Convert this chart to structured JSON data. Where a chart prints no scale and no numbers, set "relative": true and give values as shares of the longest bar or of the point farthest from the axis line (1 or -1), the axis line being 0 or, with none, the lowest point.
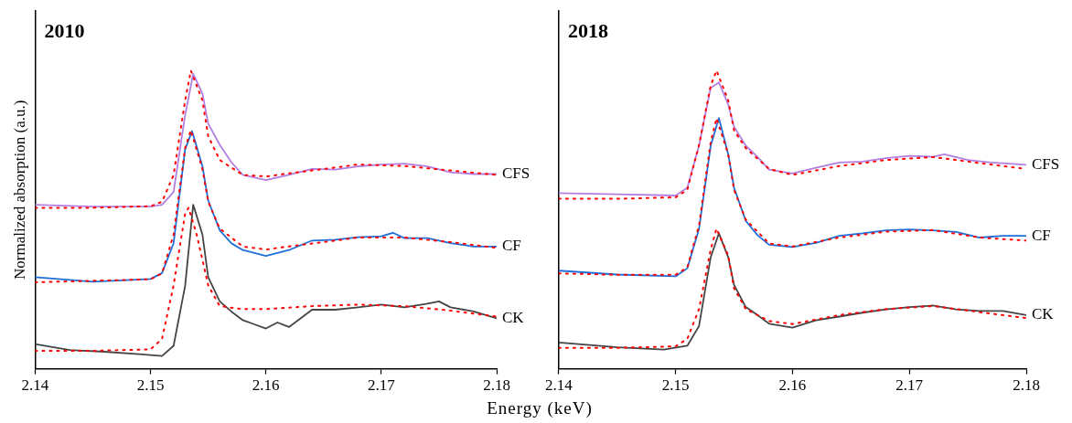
{
  "chart_data": [
    {
      "type": "line",
      "title": "2010",
      "xlabel": "Energy (keV)",
      "ylabel": "Normalized absorption (a.u.)",
      "relative": true,
      "xlim": [
        2.14,
        2.18
      ],
      "xticks": [
        2.14,
        2.15,
        2.16,
        2.17,
        2.18
      ],
      "tick_labels": "x",
      "grid": false,
      "marker": "none",
      "line_style": "solid",
      "series": [
        {
          "name": "CFS",
          "color": "#b27fe0",
          "x": [
            2.14,
            2.145,
            2.15,
            2.151,
            2.152,
            2.153,
            2.1537,
            2.1545,
            2.155,
            2.156,
            2.157,
            2.158,
            2.16,
            2.162,
            2.164,
            2.166,
            2.168,
            2.17,
            2.172,
            2.174,
            2.176,
            2.178,
            2.18
          ],
          "values": [
            0.55,
            0.544,
            0.544,
            0.55,
            0.593,
            0.851,
            0.989,
            0.923,
            0.822,
            0.751,
            0.693,
            0.65,
            0.633,
            0.65,
            0.67,
            0.668,
            0.679,
            0.685,
            0.688,
            0.679,
            0.659,
            0.653,
            0.653
          ]
        },
        {
          "name": "CF",
          "color": "#1f6fd8",
          "x": [
            2.14,
            2.145,
            2.15,
            2.151,
            2.152,
            2.153,
            2.1536,
            2.1545,
            2.155,
            2.156,
            2.157,
            2.158,
            2.16,
            2.162,
            2.164,
            2.166,
            2.168,
            2.17,
            2.171,
            2.172,
            2.174,
            2.176,
            2.178,
            2.18
          ],
          "values": [
            0.307,
            0.292,
            0.301,
            0.321,
            0.421,
            0.736,
            0.797,
            0.679,
            0.564,
            0.464,
            0.421,
            0.398,
            0.378,
            0.398,
            0.43,
            0.433,
            0.441,
            0.444,
            0.456,
            0.438,
            0.438,
            0.421,
            0.41,
            0.41
          ]
        },
        {
          "name": "CK",
          "color": "#454545",
          "x": [
            2.14,
            2.143,
            2.146,
            2.149,
            2.151,
            2.152,
            2.153,
            2.1537,
            2.1545,
            2.155,
            2.156,
            2.157,
            2.158,
            2.159,
            2.16,
            2.161,
            2.162,
            2.164,
            2.166,
            2.168,
            2.17,
            2.172,
            2.174,
            2.175,
            2.176,
            2.178,
            2.18
          ],
          "values": [
            0.083,
            0.063,
            0.057,
            0.049,
            0.043,
            0.077,
            0.278,
            0.55,
            0.45,
            0.307,
            0.226,
            0.192,
            0.163,
            0.149,
            0.135,
            0.155,
            0.14,
            0.198,
            0.198,
            0.206,
            0.215,
            0.206,
            0.218,
            0.226,
            0.206,
            0.192,
            0.169
          ]
        },
        {
          "color": "#ff0000",
          "line_style": "dotted",
          "x": [
            2.14,
            2.145,
            2.15,
            2.151,
            2.152,
            2.153,
            2.1535,
            2.1545,
            2.155,
            2.156,
            2.158,
            2.16,
            2.164,
            2.168,
            2.172,
            2.176,
            2.18
          ],
          "values": [
            0.54,
            0.54,
            0.545,
            0.56,
            0.65,
            0.9,
            1.0,
            0.9,
            0.78,
            0.7,
            0.65,
            0.645,
            0.665,
            0.685,
            0.68,
            0.665,
            0.65
          ]
        },
        {
          "color": "#ff0000",
          "line_style": "dotted",
          "x": [
            2.14,
            2.145,
            2.15,
            2.151,
            2.152,
            2.153,
            2.1535,
            2.1545,
            2.155,
            2.156,
            2.158,
            2.16,
            2.164,
            2.168,
            2.172,
            2.176,
            2.18
          ],
          "values": [
            0.29,
            0.295,
            0.3,
            0.32,
            0.45,
            0.74,
            0.8,
            0.67,
            0.56,
            0.47,
            0.41,
            0.4,
            0.42,
            0.44,
            0.44,
            0.425,
            0.405
          ]
        },
        {
          "color": "#ff0000",
          "line_style": "dotted",
          "x": [
            2.14,
            2.145,
            2.15,
            2.151,
            2.152,
            2.153,
            2.1533,
            2.154,
            2.155,
            2.156,
            2.158,
            2.16,
            2.164,
            2.168,
            2.172,
            2.176,
            2.18
          ],
          "values": [
            0.06,
            0.06,
            0.065,
            0.1,
            0.28,
            0.52,
            0.54,
            0.45,
            0.28,
            0.21,
            0.2,
            0.2,
            0.21,
            0.215,
            0.21,
            0.195,
            0.175
          ]
        }
      ]
    },
    {
      "type": "line",
      "title": "2018",
      "relative": true,
      "xlim": [
        2.14,
        2.18
      ],
      "xticks": [
        2.14,
        2.15,
        2.16,
        2.17,
        2.18
      ],
      "tick_labels": "x",
      "grid": false,
      "marker": "none",
      "line_style": "solid",
      "series": [
        {
          "name": "CFS",
          "color": "#b27fe0",
          "x": [
            2.14,
            2.145,
            2.15,
            2.151,
            2.152,
            2.153,
            2.1537,
            2.1545,
            2.155,
            2.156,
            2.157,
            2.158,
            2.16,
            2.162,
            2.164,
            2.166,
            2.168,
            2.17,
            2.172,
            2.173,
            2.175,
            2.177,
            2.18
          ],
          "values": [
            0.589,
            0.585,
            0.581,
            0.607,
            0.748,
            0.942,
            0.96,
            0.886,
            0.812,
            0.748,
            0.711,
            0.668,
            0.655,
            0.674,
            0.692,
            0.695,
            0.706,
            0.714,
            0.711,
            0.719,
            0.7,
            0.692,
            0.684
          ]
        },
        {
          "name": "CF",
          "color": "#1f6fd8",
          "x": [
            2.14,
            2.145,
            2.15,
            2.151,
            2.152,
            2.153,
            2.1537,
            2.1545,
            2.155,
            2.156,
            2.157,
            2.158,
            2.16,
            2.162,
            2.164,
            2.166,
            2.168,
            2.17,
            2.172,
            2.174,
            2.176,
            2.178,
            2.18
          ],
          "values": [
            0.329,
            0.316,
            0.31,
            0.337,
            0.469,
            0.748,
            0.841,
            0.719,
            0.607,
            0.496,
            0.448,
            0.416,
            0.408,
            0.422,
            0.446,
            0.454,
            0.464,
            0.467,
            0.464,
            0.459,
            0.44,
            0.446,
            0.446
          ]
        },
        {
          "name": "CK",
          "color": "#454545",
          "x": [
            2.14,
            2.145,
            2.149,
            2.151,
            2.152,
            2.153,
            2.1537,
            2.1545,
            2.155,
            2.156,
            2.157,
            2.158,
            2.16,
            2.162,
            2.164,
            2.166,
            2.168,
            2.17,
            2.172,
            2.174,
            2.176,
            2.178,
            2.18
          ],
          "values": [
            0.088,
            0.072,
            0.064,
            0.077,
            0.143,
            0.374,
            0.454,
            0.374,
            0.281,
            0.207,
            0.18,
            0.151,
            0.138,
            0.162,
            0.175,
            0.188,
            0.199,
            0.207,
            0.212,
            0.199,
            0.194,
            0.194,
            0.18
          ]
        },
        {
          "color": "#ff0000",
          "line_style": "dotted",
          "x": [
            2.14,
            2.145,
            2.15,
            2.151,
            2.152,
            2.153,
            2.1535,
            2.1545,
            2.155,
            2.156,
            2.158,
            2.16,
            2.164,
            2.168,
            2.172,
            2.176,
            2.18
          ],
          "values": [
            0.57,
            0.57,
            0.575,
            0.6,
            0.75,
            0.95,
            1.0,
            0.9,
            0.8,
            0.74,
            0.67,
            0.65,
            0.68,
            0.7,
            0.71,
            0.69,
            0.67
          ]
        },
        {
          "color": "#ff0000",
          "line_style": "dotted",
          "x": [
            2.14,
            2.145,
            2.15,
            2.151,
            2.152,
            2.153,
            2.1535,
            2.1545,
            2.155,
            2.156,
            2.158,
            2.16,
            2.164,
            2.168,
            2.172,
            2.176,
            2.18
          ],
          "values": [
            0.32,
            0.315,
            0.315,
            0.34,
            0.48,
            0.76,
            0.84,
            0.72,
            0.6,
            0.5,
            0.42,
            0.41,
            0.44,
            0.46,
            0.465,
            0.44,
            0.43
          ]
        },
        {
          "color": "#ff0000",
          "line_style": "dotted",
          "x": [
            2.14,
            2.145,
            2.15,
            2.151,
            2.152,
            2.153,
            2.1535,
            2.1545,
            2.155,
            2.156,
            2.158,
            2.16,
            2.164,
            2.168,
            2.172,
            2.176,
            2.18
          ],
          "values": [
            0.07,
            0.07,
            0.075,
            0.1,
            0.2,
            0.4,
            0.47,
            0.38,
            0.27,
            0.2,
            0.16,
            0.15,
            0.18,
            0.2,
            0.21,
            0.19,
            0.17
          ]
        }
      ]
    }
  ]
}
